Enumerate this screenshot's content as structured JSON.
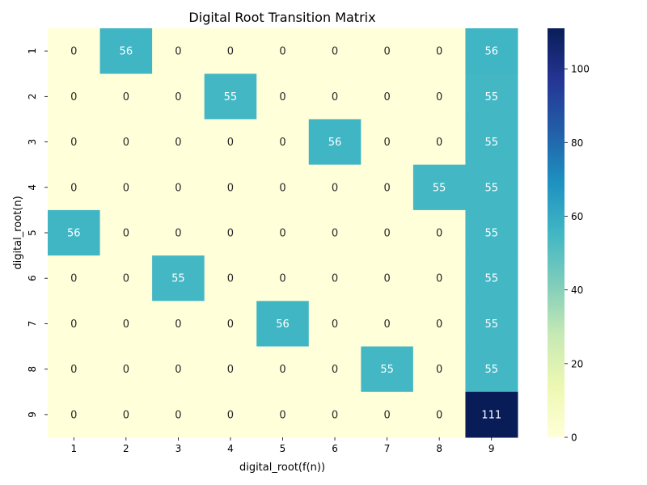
{
  "chart_data": {
    "type": "heatmap",
    "title": "Digital Root Transition Matrix",
    "xlabel": "digital_root(f(n))",
    "ylabel": "digital_root(n)",
    "x_categories": [
      "1",
      "2",
      "3",
      "4",
      "5",
      "6",
      "7",
      "8",
      "9"
    ],
    "y_categories": [
      "1",
      "2",
      "3",
      "4",
      "5",
      "6",
      "7",
      "8",
      "9"
    ],
    "values": [
      [
        0,
        56,
        0,
        0,
        0,
        0,
        0,
        0,
        56
      ],
      [
        0,
        0,
        0,
        55,
        0,
        0,
        0,
        0,
        55
      ],
      [
        0,
        0,
        0,
        0,
        0,
        56,
        0,
        0,
        55
      ],
      [
        0,
        0,
        0,
        0,
        0,
        0,
        0,
        55,
        55
      ],
      [
        56,
        0,
        0,
        0,
        0,
        0,
        0,
        0,
        55
      ],
      [
        0,
        0,
        55,
        0,
        0,
        0,
        0,
        0,
        55
      ],
      [
        0,
        0,
        0,
        0,
        56,
        0,
        0,
        0,
        55
      ],
      [
        0,
        0,
        0,
        0,
        0,
        0,
        55,
        0,
        55
      ],
      [
        0,
        0,
        0,
        0,
        0,
        0,
        0,
        0,
        111
      ]
    ],
    "colorbar": {
      "min": 0,
      "max": 111,
      "ticks": [
        0,
        20,
        40,
        60,
        80,
        100
      ],
      "colormap": "YlGnBu"
    },
    "annotations": true,
    "grid": false
  }
}
